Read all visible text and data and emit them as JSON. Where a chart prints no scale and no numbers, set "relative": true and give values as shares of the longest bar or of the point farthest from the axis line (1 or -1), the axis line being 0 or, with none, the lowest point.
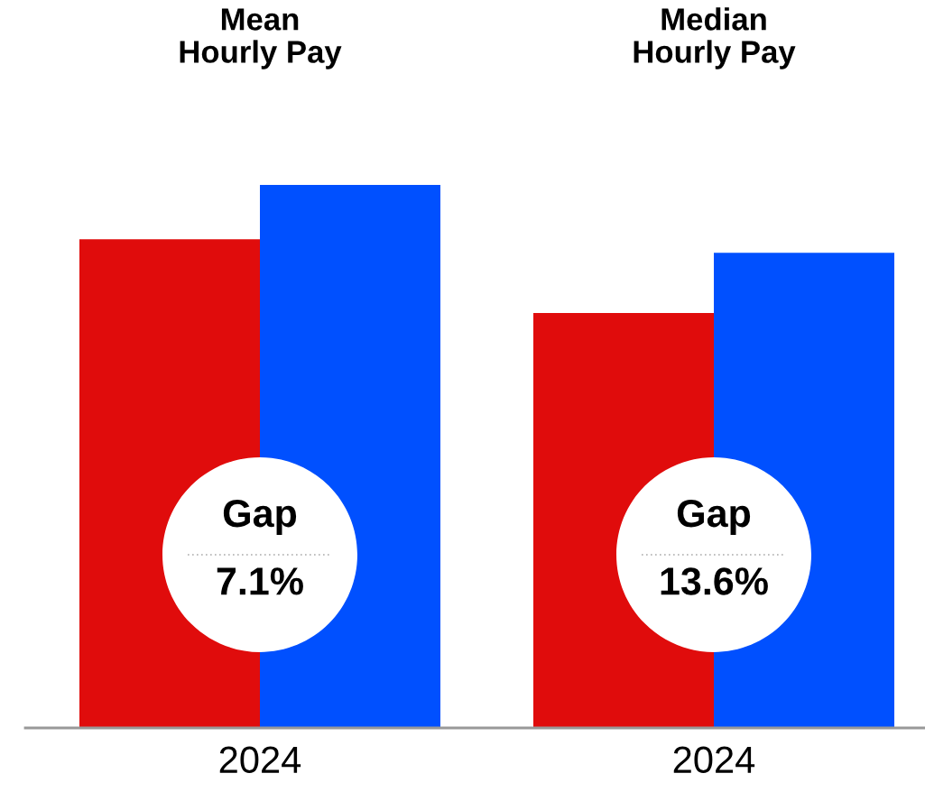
{
  "chart_data": {
    "type": "bar",
    "categories": [
      "2024",
      "2024"
    ],
    "relative": true,
    "series": [
      {
        "color": "#e00c0c",
        "values": [
          0.9,
          0.764
        ]
      },
      {
        "color": "#0050ff",
        "values": [
          1,
          0.875
        ]
      }
    ],
    "annotations": [
      "Mean\nHourly Pay",
      "Gap",
      "7.1%",
      "Median\nHourly Pay",
      "Gap",
      "13.6%"
    ]
  }
}
